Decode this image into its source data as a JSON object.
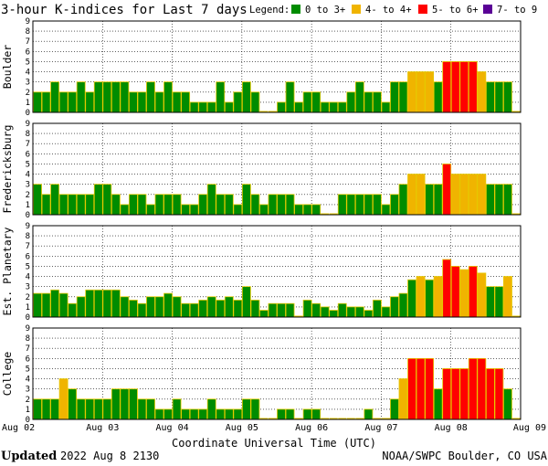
{
  "chart_data": {
    "type": "bar",
    "title": "3-hour K-indices for Last 7 days",
    "legend": {
      "label": "Legend:",
      "entries": [
        {
          "label": "0 to 3+",
          "color": "#008c00",
          "min": 0,
          "max": 3.99
        },
        {
          "label": "4- to 4+",
          "color": "#f0b400",
          "min": 3.99,
          "max": 4.99
        },
        {
          "label": "5- to 6+",
          "color": "#ff0000",
          "min": 4.99,
          "max": 6.99
        },
        {
          "label": "7- to 9",
          "color": "#5a0096",
          "min": 6.99,
          "max": 9
        }
      ]
    },
    "ylim": [
      0,
      9
    ],
    "yticks": [
      "0",
      "1",
      "2",
      "3",
      "4",
      "5",
      "6",
      "7",
      "8",
      "9"
    ],
    "x_tick_labels": [
      "Aug 02",
      "Aug 03",
      "Aug 04",
      "Aug 05",
      "Aug 06",
      "Aug 07",
      "Aug 08",
      "Aug 09"
    ],
    "xlabel": "Coordinate Universal Time (UTC)",
    "bin_hours": 3,
    "panels": [
      {
        "name": "Boulder",
        "values": [
          2,
          2,
          3,
          2,
          2,
          3,
          2,
          3,
          3,
          3,
          3,
          2,
          2,
          3,
          2,
          3,
          2,
          2,
          1,
          1,
          1,
          3,
          1,
          2,
          3,
          2,
          0,
          0,
          1,
          3,
          1,
          2,
          2,
          1,
          1,
          1,
          2,
          3,
          2,
          2,
          1,
          3,
          3,
          4,
          4,
          4,
          3,
          5,
          5,
          5,
          5,
          4,
          3,
          3,
          3,
          0
        ]
      },
      {
        "name": "Fredericksburg",
        "values": [
          3,
          2,
          3,
          2,
          2,
          2,
          2,
          3,
          3,
          2,
          1,
          2,
          2,
          1,
          2,
          2,
          2,
          1,
          1,
          2,
          3,
          2,
          2,
          1,
          3,
          2,
          1,
          2,
          2,
          2,
          1,
          1,
          1,
          0,
          0,
          2,
          2,
          2,
          2,
          2,
          1,
          2,
          3,
          4,
          4,
          3,
          3,
          5,
          4,
          4,
          4,
          4,
          3,
          3,
          3,
          0
        ]
      },
      {
        "name": "Est. Planetary",
        "values": [
          2.33,
          2.33,
          2.67,
          2.33,
          1.33,
          2,
          2.67,
          2.67,
          2.67,
          2.67,
          2,
          1.67,
          1.33,
          2,
          2,
          2.33,
          2,
          1.33,
          1.33,
          1.67,
          2,
          1.67,
          2,
          1.67,
          3,
          1.67,
          0.67,
          1.33,
          1.33,
          1.33,
          0,
          1.67,
          1.33,
          1,
          0.67,
          1.33,
          1,
          1,
          0.67,
          1.67,
          1,
          2,
          2.33,
          3.67,
          4,
          3.67,
          4,
          5.67,
          5,
          4.67,
          5,
          4.33,
          3,
          3,
          4,
          0
        ]
      },
      {
        "name": "College",
        "values": [
          2,
          2,
          2,
          4,
          3,
          2,
          2,
          2,
          2,
          3,
          3,
          3,
          2,
          2,
          1,
          1,
          2,
          1,
          1,
          1,
          2,
          1,
          1,
          1,
          2,
          2,
          0,
          0,
          1,
          1,
          0,
          1,
          1,
          0,
          0,
          0,
          0,
          0,
          1,
          0,
          0,
          2,
          4,
          6,
          6,
          6,
          3,
          5,
          5,
          5,
          6,
          6,
          5,
          5,
          3,
          0
        ]
      }
    ]
  },
  "footer": {
    "updated_label": "Updated",
    "updated_value": "2022 Aug  8 2130",
    "source": "NOAA/SWPC Boulder, CO USA"
  }
}
